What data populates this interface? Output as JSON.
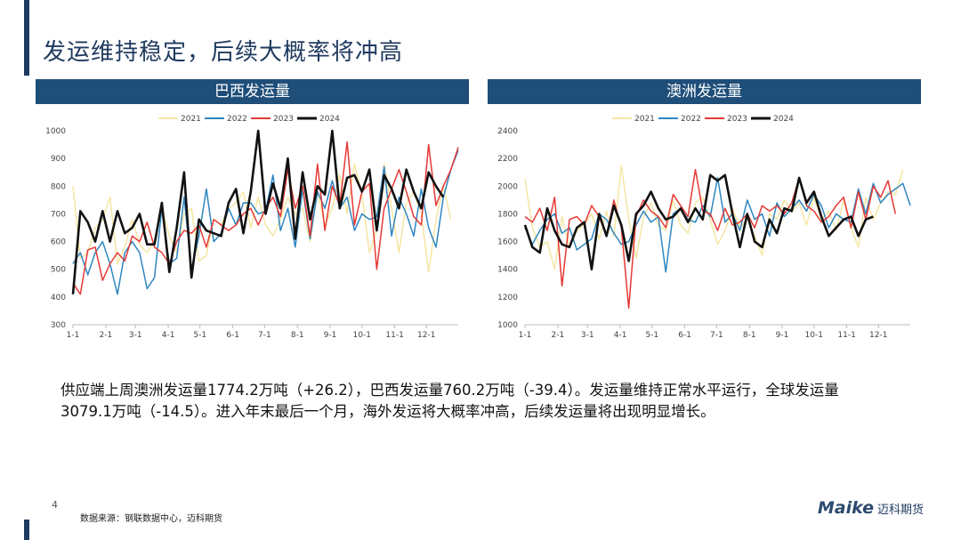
{
  "page": {
    "title": "发运维持稳定，后续大概率将冲高",
    "body_text": "供应端上周澳洲发运量1774.2万吨（+26.2），巴西发运量760.2万吨（-39.4）。发运量维持正常水平运行，全球发运量3079.1万吨（-14.5）。进入年末最后一个月，海外发运将大概率冲高，后续发运量将出现明显增长。",
    "page_number": "4",
    "source": "数据来源：钢联数据中心，迈科期货",
    "logo_text": "Maike",
    "logo_cn": "迈科期货"
  },
  "colors": {
    "2021": "#f5e6a3",
    "2022": "#2e86c1",
    "2023": "#e53935",
    "2024": "#111111"
  },
  "chart_data": [
    {
      "type": "line",
      "title": "巴西发运量",
      "xlabel": "",
      "ylabel": "",
      "ylim": [
        300,
        1000
      ],
      "yticks": [
        300,
        400,
        500,
        600,
        700,
        800,
        900,
        1000
      ],
      "x_ticks": [
        "1-1",
        "2-1",
        "3-1",
        "4-1",
        "5-1",
        "6-1",
        "7-1",
        "8-1",
        "9-1",
        "10-1",
        "11-1",
        "12-1"
      ],
      "x_tick_weeks": [
        1,
        5.43,
        9.43,
        13.86,
        18.14,
        22.57,
        26.86,
        31.29,
        35.71,
        40,
        44.43,
        48.71
      ],
      "legend": "top",
      "series": [
        {
          "name": "2021",
          "values": [
            800,
            540,
            560,
            650,
            680,
            760,
            520,
            580,
            680,
            590,
            560,
            600,
            720,
            620,
            560,
            700,
            720,
            530,
            550,
            680,
            660,
            720,
            740,
            780,
            650,
            760,
            660,
            620,
            680,
            760,
            700,
            720,
            600,
            780,
            660,
            720,
            840,
            700,
            880,
            770,
            560,
            640,
            880,
            720,
            560,
            740,
            780,
            700,
            490,
            680,
            800,
            680
          ]
        },
        {
          "name": "2022",
          "values": [
            520,
            560,
            480,
            560,
            600,
            520,
            410,
            560,
            600,
            560,
            430,
            470,
            720,
            520,
            540,
            760,
            500,
            620,
            790,
            600,
            630,
            720,
            660,
            740,
            740,
            700,
            710,
            840,
            640,
            720,
            580,
            790,
            610,
            780,
            720,
            820,
            720,
            760,
            640,
            700,
            680,
            690,
            870,
            620,
            760,
            700,
            620,
            790,
            650,
            580,
            760,
            860,
            930
          ]
        },
        {
          "name": "2023",
          "values": [
            450,
            410,
            570,
            580,
            460,
            520,
            560,
            530,
            620,
            600,
            670,
            580,
            560,
            520,
            600,
            640,
            630,
            660,
            580,
            680,
            660,
            640,
            660,
            700,
            720,
            660,
            720,
            760,
            690,
            860,
            720,
            800,
            620,
            880,
            640,
            800,
            730,
            960,
            660,
            780,
            810,
            500,
            720,
            790,
            860,
            780,
            690,
            660,
            950,
            730,
            800,
            860,
            940
          ]
        },
        {
          "name": "2024",
          "values": [
            410,
            710,
            670,
            600,
            710,
            600,
            710,
            630,
            650,
            700,
            590,
            590,
            740,
            490,
            650,
            850,
            470,
            680,
            640,
            630,
            620,
            740,
            790,
            630,
            780,
            1000,
            700,
            810,
            720,
            900,
            610,
            850,
            680,
            800,
            770,
            1000,
            720,
            830,
            840,
            780,
            860,
            640,
            840,
            790,
            720,
            860,
            780,
            720,
            850,
            800,
            760
          ]
        }
      ]
    },
    {
      "type": "line",
      "title": "澳洲发运量",
      "xlabel": "",
      "ylabel": "",
      "ylim": [
        1000,
        2400
      ],
      "yticks": [
        1000,
        1200,
        1400,
        1600,
        1800,
        2000,
        2200,
        2400
      ],
      "x_ticks": [
        "1-1",
        "2-1",
        "3-1",
        "4-1",
        "5-1",
        "6-1",
        "7-1",
        "8-1",
        "9-1",
        "10-1",
        "11-1",
        "12-1"
      ],
      "x_tick_weeks": [
        1,
        5.43,
        9.43,
        13.86,
        18.14,
        22.57,
        26.86,
        31.29,
        35.71,
        40,
        44.43,
        48.71
      ],
      "legend": "top",
      "series": [
        {
          "name": "2021",
          "values": [
            2050,
            1700,
            1560,
            1600,
            1400,
            1780,
            1560,
            1680,
            1720,
            1800,
            1620,
            1820,
            1640,
            2150,
            1760,
            1480,
            1780,
            1880,
            1720,
            1680,
            1900,
            1720,
            1660,
            1880,
            1920,
            1760,
            1580,
            1680,
            1840,
            1700,
            1760,
            1640,
            1500,
            1800,
            1760,
            1900,
            1820,
            1880,
            1720,
            1920,
            1760,
            1820,
            1680,
            1900,
            1700,
            1560,
            1920,
            1760,
            1880,
            1960,
            1940,
            2120
          ]
        },
        {
          "name": "2022",
          "values": [
            1700,
            1580,
            1680,
            1760,
            1800,
            1660,
            1700,
            1540,
            1580,
            1620,
            1800,
            1760,
            1660,
            1580,
            1600,
            1720,
            1820,
            1740,
            1780,
            1380,
            1800,
            1840,
            1760,
            1740,
            1860,
            1780,
            2060,
            1740,
            1800,
            1680,
            1900,
            1760,
            1800,
            1640,
            1880,
            1780,
            1840,
            1900,
            1820,
            1940,
            1860,
            1700,
            1800,
            1760,
            1740,
            1980,
            1800,
            2020,
            1880,
            1940,
            1980,
            2020,
            1860
          ]
        },
        {
          "name": "2023",
          "values": [
            1780,
            1740,
            1840,
            1680,
            1920,
            1280,
            1760,
            1780,
            1720,
            1860,
            1780,
            1640,
            1900,
            1700,
            1120,
            1780,
            1900,
            1820,
            1780,
            1700,
            1940,
            1860,
            1780,
            2120,
            1820,
            1800,
            1680,
            1840,
            1720,
            1740,
            1800,
            1700,
            1860,
            1820,
            1860,
            1800,
            1880,
            2060,
            1860,
            1820,
            1740,
            1780,
            1860,
            1920,
            1700,
            1960,
            1760,
            2000,
            1920,
            2040,
            1800
          ]
        },
        {
          "name": "2024",
          "values": [
            1720,
            1560,
            1520,
            1840,
            1680,
            1580,
            1560,
            1700,
            1740,
            1400,
            1800,
            1640,
            1860,
            1720,
            1460,
            1800,
            1860,
            1960,
            1840,
            1760,
            1780,
            1840,
            1740,
            1840,
            1760,
            2080,
            2040,
            2080,
            1800,
            1560,
            1800,
            1600,
            1560,
            1760,
            1660,
            1840,
            1820,
            2060,
            1880,
            1960,
            1780,
            1640,
            1700,
            1760,
            1780,
            1640,
            1760,
            1780
          ]
        }
      ]
    }
  ]
}
